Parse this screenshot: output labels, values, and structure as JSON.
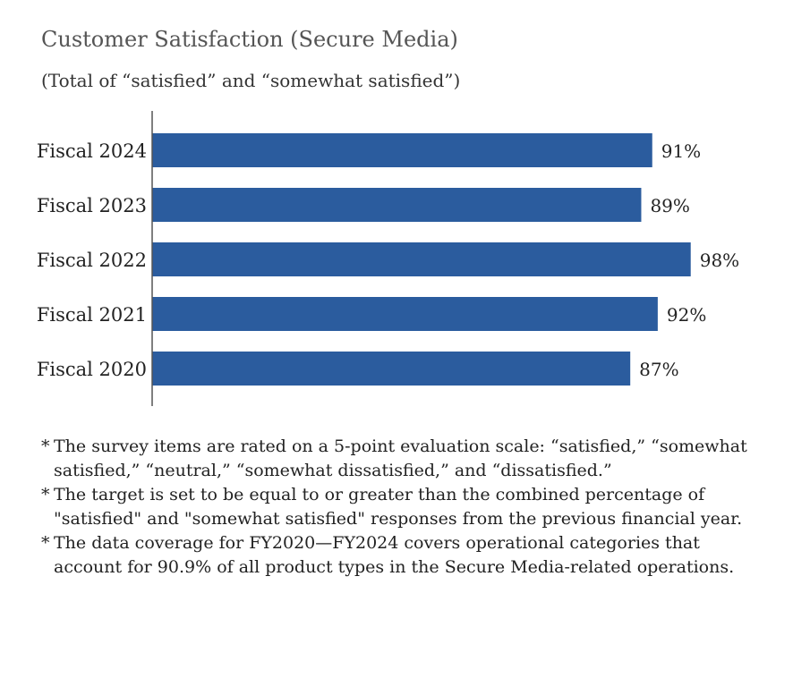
{
  "title": "Customer Satisfaction (Secure Media)",
  "subtitle": "(Total of “satisfied” and “somewhat satisfied”)",
  "chart_data": {
    "type": "bar",
    "orientation": "horizontal",
    "categories": [
      "Fiscal 2024",
      "Fiscal 2023",
      "Fiscal 2022",
      "Fiscal 2021",
      "Fiscal 2020"
    ],
    "values": [
      91,
      89,
      98,
      92,
      87
    ],
    "data_labels": [
      "91%",
      "89%",
      "98%",
      "92%",
      "87%"
    ],
    "unit": "%",
    "xlim": [
      0,
      100
    ],
    "grid": false,
    "bar_color": "#2B5C9E"
  },
  "notes": [
    {
      "mark": "*",
      "text": "The survey items are rated on a 5-point evaluation scale: “satisfied,” “somewhat satisfied,” “neutral,” “somewhat dissatisfied,” and “dissatisfied.”"
    },
    {
      "mark": "*",
      "text": "The target is set to be equal to or greater than the combined percentage of \"satisfied\" and \"somewhat satisfied\" responses from the previous financial year."
    },
    {
      "mark": "*",
      "text": "The data coverage for FY2020—FY2024 covers operational categories that account for 90.9% of all product types in the Secure Media-related operations."
    }
  ]
}
